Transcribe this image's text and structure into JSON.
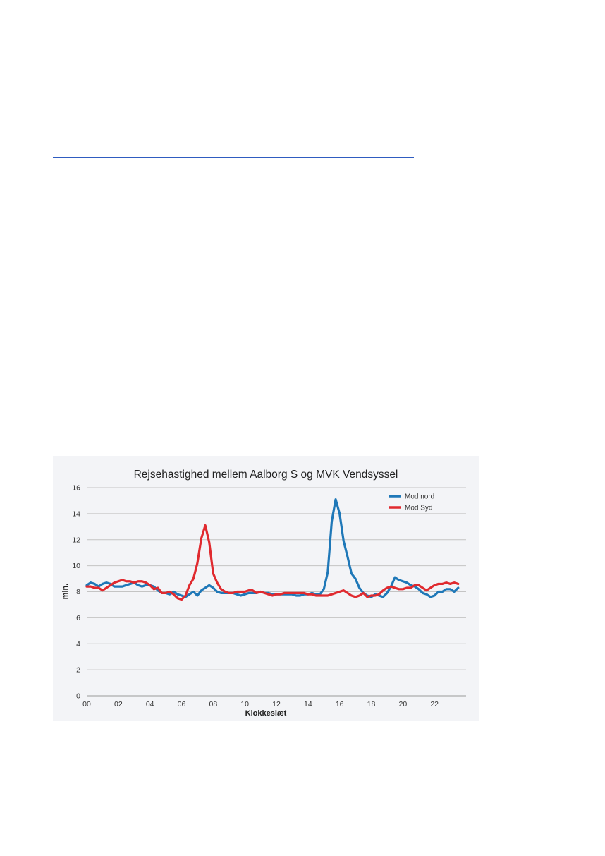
{
  "chart_data": {
    "type": "line",
    "title": "Rejsehastighed mellem Aalborg S og MVK Vendsyssel",
    "xlabel": "Klokkeslæt",
    "ylabel": "min.",
    "xlim": [
      0,
      24
    ],
    "ylim": [
      0,
      16
    ],
    "x_ticks": [
      0,
      2,
      4,
      6,
      8,
      10,
      12,
      14,
      16,
      18,
      20,
      22
    ],
    "x_tick_labels": [
      "00",
      "02",
      "04",
      "06",
      "08",
      "10",
      "12",
      "14",
      "16",
      "18",
      "20",
      "22"
    ],
    "y_ticks": [
      0,
      2,
      4,
      6,
      8,
      10,
      12,
      14,
      16
    ],
    "y_tick_labels": [
      "0",
      "2",
      "4",
      "6",
      "8",
      "10",
      "12",
      "14",
      "16"
    ],
    "grid": "horizontal",
    "legend_position": "top-right",
    "series": [
      {
        "name": "Mod nord",
        "color": "#1f78b8",
        "points": [
          [
            0.0,
            8.5
          ],
          [
            0.25,
            8.7
          ],
          [
            0.5,
            8.6
          ],
          [
            0.75,
            8.4
          ],
          [
            1.0,
            8.6
          ],
          [
            1.25,
            8.7
          ],
          [
            1.5,
            8.6
          ],
          [
            1.75,
            8.4
          ],
          [
            2.0,
            8.4
          ],
          [
            2.25,
            8.4
          ],
          [
            2.5,
            8.5
          ],
          [
            2.75,
            8.6
          ],
          [
            3.0,
            8.7
          ],
          [
            3.25,
            8.5
          ],
          [
            3.5,
            8.4
          ],
          [
            3.75,
            8.5
          ],
          [
            4.0,
            8.5
          ],
          [
            4.25,
            8.4
          ],
          [
            4.5,
            8.1
          ],
          [
            4.75,
            7.9
          ],
          [
            5.0,
            7.9
          ],
          [
            5.25,
            7.8
          ],
          [
            5.5,
            8.0
          ],
          [
            5.75,
            7.8
          ],
          [
            6.0,
            7.7
          ],
          [
            6.25,
            7.6
          ],
          [
            6.5,
            7.8
          ],
          [
            6.75,
            8.0
          ],
          [
            7.0,
            7.7
          ],
          [
            7.25,
            8.1
          ],
          [
            7.5,
            8.3
          ],
          [
            7.75,
            8.5
          ],
          [
            8.0,
            8.3
          ],
          [
            8.25,
            8.0
          ],
          [
            8.5,
            7.9
          ],
          [
            8.75,
            7.9
          ],
          [
            9.0,
            7.9
          ],
          [
            9.25,
            7.9
          ],
          [
            9.5,
            7.8
          ],
          [
            9.75,
            7.7
          ],
          [
            10.0,
            7.8
          ],
          [
            10.25,
            7.9
          ],
          [
            10.5,
            7.9
          ],
          [
            10.75,
            7.9
          ],
          [
            11.0,
            8.0
          ],
          [
            11.25,
            7.9
          ],
          [
            11.5,
            7.9
          ],
          [
            11.75,
            7.8
          ],
          [
            12.0,
            7.8
          ],
          [
            12.25,
            7.8
          ],
          [
            12.5,
            7.8
          ],
          [
            12.75,
            7.8
          ],
          [
            13.0,
            7.8
          ],
          [
            13.25,
            7.7
          ],
          [
            13.5,
            7.7
          ],
          [
            13.75,
            7.8
          ],
          [
            14.0,
            7.8
          ],
          [
            14.25,
            7.9
          ],
          [
            14.5,
            7.8
          ],
          [
            14.75,
            7.8
          ],
          [
            15.0,
            8.2
          ],
          [
            15.25,
            9.5
          ],
          [
            15.5,
            13.4
          ],
          [
            15.75,
            15.1
          ],
          [
            16.0,
            14.0
          ],
          [
            16.25,
            11.9
          ],
          [
            16.5,
            10.7
          ],
          [
            16.75,
            9.4
          ],
          [
            17.0,
            9.0
          ],
          [
            17.25,
            8.3
          ],
          [
            17.5,
            7.9
          ],
          [
            17.75,
            7.7
          ],
          [
            18.0,
            7.6
          ],
          [
            18.25,
            7.8
          ],
          [
            18.5,
            7.7
          ],
          [
            18.75,
            7.6
          ],
          [
            19.0,
            7.9
          ],
          [
            19.25,
            8.4
          ],
          [
            19.5,
            9.1
          ],
          [
            19.75,
            8.9
          ],
          [
            20.0,
            8.8
          ],
          [
            20.25,
            8.7
          ],
          [
            20.5,
            8.5
          ],
          [
            20.75,
            8.4
          ],
          [
            21.0,
            8.2
          ],
          [
            21.25,
            7.9
          ],
          [
            21.5,
            7.8
          ],
          [
            21.75,
            7.6
          ],
          [
            22.0,
            7.7
          ],
          [
            22.25,
            8.0
          ],
          [
            22.5,
            8.0
          ],
          [
            22.75,
            8.2
          ],
          [
            23.0,
            8.2
          ],
          [
            23.25,
            8.0
          ],
          [
            23.5,
            8.3
          ]
        ]
      },
      {
        "name": "Mod Syd",
        "color": "#e02a2f",
        "points": [
          [
            0.0,
            8.4
          ],
          [
            0.25,
            8.4
          ],
          [
            0.5,
            8.3
          ],
          [
            0.75,
            8.3
          ],
          [
            1.0,
            8.1
          ],
          [
            1.25,
            8.3
          ],
          [
            1.5,
            8.5
          ],
          [
            1.75,
            8.7
          ],
          [
            2.0,
            8.8
          ],
          [
            2.25,
            8.9
          ],
          [
            2.5,
            8.8
          ],
          [
            2.75,
            8.8
          ],
          [
            3.0,
            8.7
          ],
          [
            3.25,
            8.8
          ],
          [
            3.5,
            8.8
          ],
          [
            3.75,
            8.7
          ],
          [
            4.0,
            8.5
          ],
          [
            4.25,
            8.2
          ],
          [
            4.5,
            8.3
          ],
          [
            4.75,
            7.9
          ],
          [
            5.0,
            7.9
          ],
          [
            5.25,
            8.0
          ],
          [
            5.5,
            7.8
          ],
          [
            5.75,
            7.5
          ],
          [
            6.0,
            7.4
          ],
          [
            6.25,
            7.7
          ],
          [
            6.5,
            8.5
          ],
          [
            6.75,
            9.0
          ],
          [
            7.0,
            10.2
          ],
          [
            7.25,
            12.1
          ],
          [
            7.5,
            13.1
          ],
          [
            7.75,
            11.8
          ],
          [
            8.0,
            9.4
          ],
          [
            8.25,
            8.7
          ],
          [
            8.5,
            8.2
          ],
          [
            8.75,
            8.0
          ],
          [
            9.0,
            7.9
          ],
          [
            9.25,
            7.9
          ],
          [
            9.5,
            8.0
          ],
          [
            9.75,
            8.0
          ],
          [
            10.0,
            8.0
          ],
          [
            10.25,
            8.1
          ],
          [
            10.5,
            8.1
          ],
          [
            10.75,
            7.9
          ],
          [
            11.0,
            8.0
          ],
          [
            11.25,
            7.9
          ],
          [
            11.5,
            7.8
          ],
          [
            11.75,
            7.7
          ],
          [
            12.0,
            7.8
          ],
          [
            12.25,
            7.8
          ],
          [
            12.5,
            7.9
          ],
          [
            12.75,
            7.9
          ],
          [
            13.0,
            7.9
          ],
          [
            13.25,
            7.9
          ],
          [
            13.5,
            7.9
          ],
          [
            13.75,
            7.9
          ],
          [
            14.0,
            7.8
          ],
          [
            14.25,
            7.8
          ],
          [
            14.5,
            7.7
          ],
          [
            14.75,
            7.7
          ],
          [
            15.0,
            7.7
          ],
          [
            15.25,
            7.7
          ],
          [
            15.5,
            7.8
          ],
          [
            15.75,
            7.9
          ],
          [
            16.0,
            8.0
          ],
          [
            16.25,
            8.1
          ],
          [
            16.5,
            7.9
          ],
          [
            16.75,
            7.7
          ],
          [
            17.0,
            7.6
          ],
          [
            17.25,
            7.7
          ],
          [
            17.5,
            7.9
          ],
          [
            17.75,
            7.6
          ],
          [
            18.0,
            7.7
          ],
          [
            18.25,
            7.7
          ],
          [
            18.5,
            7.8
          ],
          [
            18.75,
            8.1
          ],
          [
            19.0,
            8.3
          ],
          [
            19.25,
            8.4
          ],
          [
            19.5,
            8.3
          ],
          [
            19.75,
            8.2
          ],
          [
            20.0,
            8.2
          ],
          [
            20.25,
            8.3
          ],
          [
            20.5,
            8.3
          ],
          [
            20.75,
            8.5
          ],
          [
            21.0,
            8.5
          ],
          [
            21.25,
            8.3
          ],
          [
            21.5,
            8.1
          ],
          [
            21.75,
            8.3
          ],
          [
            22.0,
            8.5
          ],
          [
            22.25,
            8.6
          ],
          [
            22.5,
            8.6
          ],
          [
            22.75,
            8.7
          ],
          [
            23.0,
            8.6
          ],
          [
            23.25,
            8.7
          ],
          [
            23.5,
            8.6
          ]
        ]
      }
    ]
  }
}
